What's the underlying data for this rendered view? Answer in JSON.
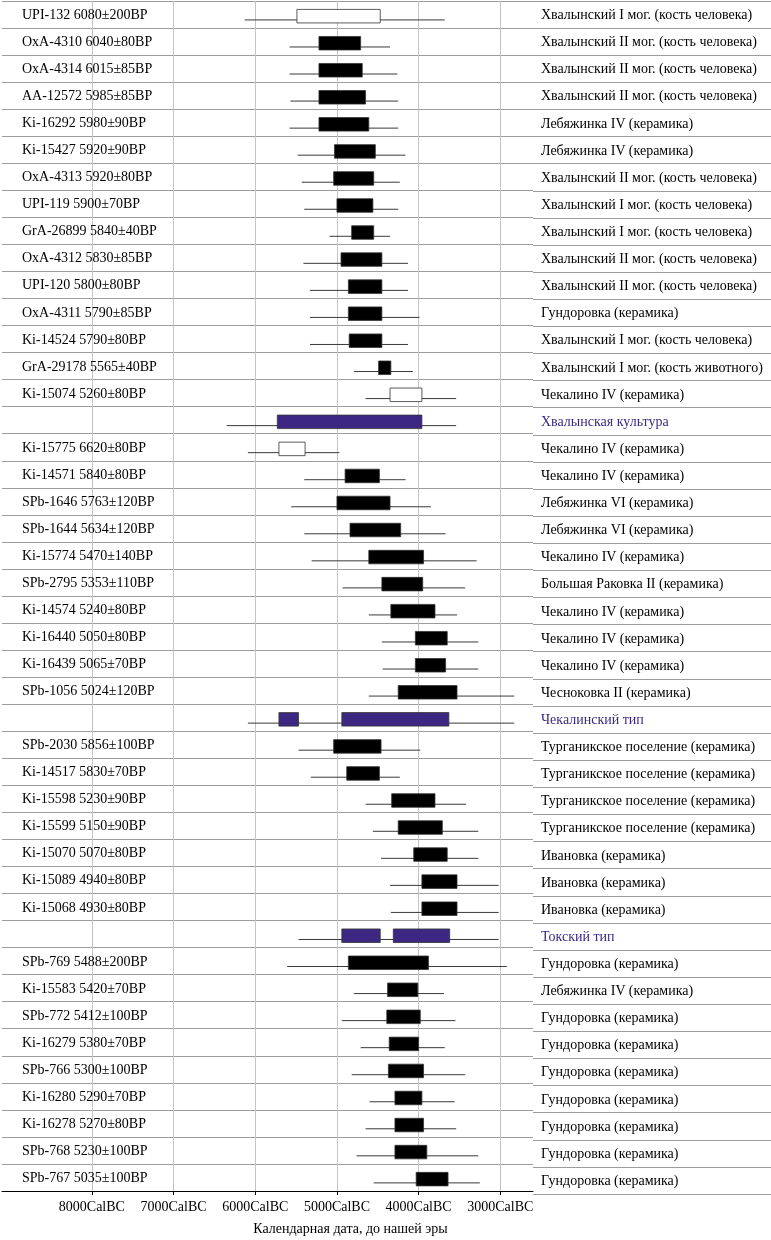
{
  "chart_data": {
    "type": "bar",
    "orientation": "horizontal",
    "xlabel": "Календарная дата, до нашей эры",
    "categories": [
      "UPI-132 6080±200BP",
      "OxA-4310 6040±80BP",
      "OxA-4314 6015±85BP",
      "AA-12572 5985±85BP",
      "Ki-16292 5980±90BP",
      "Ki-15427 5920±90BP",
      "OxA-4313 5920±80BP",
      "UPI-119 5900±70BP",
      "GrA-26899 5840±40BP",
      "OxA-4312 5830±85BP",
      "UPI-120 5800±80BP",
      "OxA-4311 5790±85BP",
      "Ki-14524 5790±80BP",
      "GrA-29178 5565±40BP",
      "Ki-15074 5260±80BP",
      null,
      "Ki-15775 6620±80BP",
      "Ki-14571 5840±80BP",
      "SPb-1646 5763±120BP",
      "SPb-1644 5634±120BP",
      "Ki-15774 5470±140BP",
      "SPb-2795 5353±110BP",
      "Ki-14574 5240±80BP",
      "Ki-16440 5050±80BP",
      "Ki-16439 5065±70BP",
      "SPb-1056 5024±120BP",
      null,
      "SPb-2030 5856±100BP",
      "Ki-14517 5830±70BP",
      "Ki-15598 5230±90BP",
      "Ki-15599 5150±90BP",
      "Ki-15070 5070±80BP",
      "Ki-15089 4940±80BP",
      "Ki-15068 4930±80BP",
      null,
      "SPb-769 5488±200BP",
      "Ki-15583 5420±70BP",
      "SPb-772 5412±100BP",
      "Ki-16279 5380±70BP",
      "SPb-766 5300±100BP",
      "Ki-16280 5290±70BP",
      "Ki-16278 5270±80BP",
      "SPb-768 5230±100BP",
      "SPb-767 5035±100BP"
    ],
    "y2_categories": [
      "Хвалынский I мог. (кость человека)",
      "Хвалынский II мог. (кость человека)",
      "Хвалынский II мог. (кость человека)",
      "Хвалынский II мог. (кость человека)",
      "Лебяжинка IV (керамика)",
      "Лебяжинка IV (керамика)",
      "Хвалынский II мог. (кость человека)",
      "Хвалынский I мог. (кость человека)",
      "Хвалынский I мог. (кость человека)",
      "Хвалынский II мог. (кость человека)",
      "Хвалынский II мог. (кость человека)",
      "Гундоровка (керамика)",
      "Хвалынский I мог. (кость человека)",
      "Хвалынский I мог. (кость животного)",
      "Чекалино IV (керамика)",
      "Хвалынская культура",
      "Чекалино IV (керамика)",
      "Чекалино IV (керамика)",
      "Лебяжинка VI (керамика)",
      "Лебяжинка VI (керамика)",
      "Чекалино IV (керамика)",
      "Большая Раковка II (керамика)",
      "Чекалино IV (керамика)",
      "Чекалино IV (керамика)",
      "Чекалино IV (керамика)",
      "Чесноковка II (керамика)",
      "Чекалинский тип",
      "Турганикское поселение (керамика)",
      "Турганикское поселение (керамика)",
      "Турганикское поселение (керамика)",
      "Турганикское поселение (керамика)",
      "Ивановка (керамика)",
      "Ивановка (керамика)",
      "Ивановка (керамика)",
      "Токский тип",
      "Гундоровка (керамика)",
      "Лебяжинка IV (керамика)",
      "Гундоровка (керамика)",
      "Гундоровка (керамика)",
      "Гундоровка (керамика)",
      "Гундоровка (керамика)",
      "Гундоровка (керамика)",
      "Гундоровка (керамика)",
      "Гундоровка (керамика)"
    ],
    "xlim": [
      9100,
      2600
    ],
    "xticks": [
      {
        "value": 8000,
        "label": "8000CalBC"
      },
      {
        "value": 7000,
        "label": "7000CalBC"
      },
      {
        "value": 6000,
        "label": "6000CalBC"
      },
      {
        "value": 5000,
        "label": "5000CalBC"
      },
      {
        "value": 4000,
        "label": "4000CalBC"
      },
      {
        "value": 3000,
        "label": "3000CalBC"
      }
    ],
    "grid": true,
    "series": [
      {
        "base": [
          4470,
          4710,
          4690,
          4650,
          4610,
          4530,
          4550,
          4560,
          4550,
          4450,
          4450,
          4450,
          4450,
          4340,
          3960,
          null,
          5390,
          4480,
          4350,
          4220,
          3940,
          3950,
          3800,
          3650,
          3670,
          3530,
          null,
          4460,
          4480,
          3800,
          3710,
          3650,
          3530,
          3530,
          null,
          3880,
          4010,
          3980,
          4000,
          3940,
          3960,
          3940,
          3900,
          3640
        ],
        "values": [
          1020,
          510,
          530,
          570,
          610,
          500,
          490,
          440,
          270,
          500,
          410,
          410,
          400,
          150,
          390,
          null,
          320,
          420,
          650,
          620,
          670,
          500,
          540,
          390,
          370,
          720,
          null,
          580,
          400,
          530,
          540,
          410,
          430,
          430,
          null,
          980,
          370,
          410,
          360,
          430,
          330,
          350,
          390,
          390
        ],
        "errors": [
          [
            3680,
            6130
          ],
          [
            4350,
            5580
          ],
          [
            4260,
            5580
          ],
          [
            4250,
            5570
          ],
          [
            4250,
            5580
          ],
          [
            4160,
            5480
          ],
          [
            4230,
            5430
          ],
          [
            4250,
            5400
          ],
          [
            4350,
            5090
          ],
          [
            4130,
            5410
          ],
          [
            4130,
            5330
          ],
          [
            3990,
            5330
          ],
          [
            4130,
            5330
          ],
          [
            4070,
            4790
          ],
          [
            3540,
            4650
          ],
          null,
          [
            4970,
            6090
          ],
          [
            4160,
            5400
          ],
          [
            3850,
            5560
          ],
          [
            3670,
            5400
          ],
          [
            3290,
            5310
          ],
          [
            3430,
            4930
          ],
          [
            3530,
            4610
          ],
          [
            3270,
            4450
          ],
          [
            3270,
            4440
          ],
          [
            2830,
            4610
          ],
          null,
          [
            3980,
            5470
          ],
          [
            4230,
            5320
          ],
          [
            3420,
            4650
          ],
          [
            3270,
            4560
          ],
          [
            3270,
            4460
          ],
          [
            3020,
            4350
          ],
          [
            3020,
            4340
          ],
          null,
          [
            2920,
            5610
          ],
          [
            3690,
            4790
          ],
          [
            3550,
            4940
          ],
          [
            3680,
            4710
          ],
          [
            3430,
            4820
          ],
          [
            3560,
            4600
          ],
          [
            3540,
            4650
          ],
          [
            3270,
            4760
          ],
          [
            3250,
            4550
          ]
        ],
        "colors": [
          "#ffffff",
          "#000000",
          "#000000",
          "#000000",
          "#000000",
          "#000000",
          "#000000",
          "#000000",
          "#000000",
          "#000000",
          "#000000",
          "#000000",
          "#000000",
          "#000000",
          "#ffffff",
          null,
          "#ffffff",
          "#000000",
          "#000000",
          "#000000",
          "#000000",
          "#000000",
          "#000000",
          "#000000",
          "#000000",
          "#000000",
          null,
          "#000000",
          "#000000",
          "#000000",
          "#000000",
          "#000000",
          "#000000",
          "#000000",
          null,
          "#000000",
          "#000000",
          "#000000",
          "#000000",
          "#000000",
          "#000000",
          "#000000",
          "#000000",
          "#000000"
        ]
      },
      {
        "color": "#3c2882",
        "base": [
          null,
          null,
          null,
          null,
          null,
          null,
          null,
          null,
          null,
          null,
          null,
          null,
          null,
          null,
          null,
          3960,
          null,
          null,
          null,
          null,
          null,
          null,
          null,
          null,
          null,
          null,
          3630,
          null,
          null,
          null,
          null,
          null,
          null,
          null,
          3620,
          null,
          null,
          null,
          null,
          null,
          null,
          null,
          null,
          null
        ],
        "values": [
          null,
          null,
          null,
          null,
          null,
          null,
          null,
          null,
          null,
          null,
          null,
          null,
          null,
          null,
          null,
          1770,
          null,
          null,
          null,
          null,
          null,
          null,
          null,
          null,
          null,
          null,
          1310,
          null,
          null,
          null,
          null,
          null,
          null,
          null,
          690,
          null,
          null,
          null,
          null,
          null,
          null,
          null,
          null,
          null
        ],
        "errors": [
          null,
          null,
          null,
          null,
          null,
          null,
          null,
          null,
          null,
          null,
          null,
          null,
          null,
          null,
          null,
          [
            3540,
            6350
          ],
          null,
          null,
          null,
          null,
          null,
          null,
          null,
          null,
          null,
          null,
          [
            2830,
            6090
          ],
          null,
          null,
          null,
          null,
          null,
          null,
          null,
          [
            3020,
            5470
          ],
          null,
          null,
          null,
          null,
          null,
          null,
          null,
          null,
          null
        ]
      },
      {
        "color": "#3c2882",
        "base": [
          null,
          null,
          null,
          null,
          null,
          null,
          null,
          null,
          null,
          null,
          null,
          null,
          null,
          null,
          null,
          null,
          null,
          null,
          null,
          null,
          null,
          null,
          null,
          null,
          null,
          null,
          5470,
          null,
          null,
          null,
          null,
          null,
          null,
          null,
          4470,
          null,
          null,
          null,
          null,
          null,
          null,
          null,
          null,
          null
        ],
        "values": [
          null,
          null,
          null,
          null,
          null,
          null,
          null,
          null,
          null,
          null,
          null,
          null,
          null,
          null,
          null,
          null,
          null,
          null,
          null,
          null,
          null,
          null,
          null,
          null,
          null,
          null,
          240,
          null,
          null,
          null,
          null,
          null,
          null,
          null,
          470,
          null,
          null,
          null,
          null,
          null,
          null,
          null,
          null,
          null
        ]
      }
    ]
  }
}
